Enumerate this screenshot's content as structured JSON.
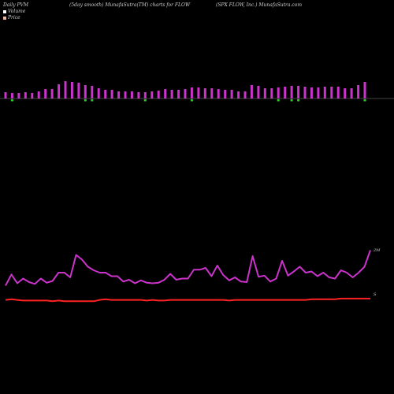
{
  "header": {
    "left": "Daily PVM",
    "middle": "(5day smooth) MunafaSutra(TM) charts for FLOW",
    "right": "(SPX FLOW, Inc.) MunafaSutra.com"
  },
  "legend": [
    {
      "label": "Volume",
      "color": "#ffffff"
    },
    {
      "label": "Price",
      "color": "#f2b6a0"
    }
  ],
  "colors": {
    "volume_up": "#cc33cc",
    "volume_down": "#33cc33",
    "pvm_line": "#cc33cc",
    "price_line": "#ff2222",
    "baseline": "#8a8a8a"
  },
  "chart_data": [
    {
      "type": "bar",
      "series": [
        {
          "name": "Volume",
          "values": [
            8,
            7,
            7,
            8,
            7,
            9,
            12,
            12,
            18,
            22,
            21,
            20,
            17,
            16,
            13,
            11,
            11,
            9,
            9,
            9,
            8,
            8,
            9,
            10,
            12,
            11,
            11,
            12,
            14,
            14,
            13,
            13,
            12,
            11,
            11,
            9,
            9,
            17,
            16,
            13,
            13,
            14,
            15,
            16,
            16,
            15,
            14,
            14,
            15,
            15,
            15,
            13,
            13,
            17,
            21
          ],
          "direction": [
            "u",
            "d",
            "u",
            "u",
            "u",
            "u",
            "u",
            "u",
            "u",
            "u",
            "u",
            "u",
            "d",
            "d",
            "u",
            "u",
            "u",
            "u",
            "u",
            "u",
            "u",
            "d",
            "u",
            "u",
            "u",
            "u",
            "u",
            "u",
            "d",
            "u",
            "u",
            "u",
            "u",
            "u",
            "u",
            "u",
            "u",
            "u",
            "u",
            "u",
            "u",
            "d",
            "u",
            "d",
            "d",
            "u",
            "u",
            "u",
            "u",
            "u",
            "u",
            "u",
            "u",
            "u",
            "d"
          ]
        }
      ]
    },
    {
      "type": "line",
      "series": [
        {
          "name": "",
          "values": [
            18,
            37,
            22,
            30,
            24,
            21,
            30,
            23,
            26,
            40,
            40,
            32,
            70,
            62,
            50,
            44,
            40,
            40,
            34,
            34,
            25,
            28,
            22,
            27,
            23,
            22,
            23,
            28,
            38,
            28,
            30,
            30,
            45,
            45,
            48,
            34,
            52,
            36,
            27,
            32,
            25,
            24,
            68,
            33,
            35,
            25,
            30,
            60,
            35,
            42,
            50,
            40,
            42,
            34,
            40,
            32,
            30,
            44,
            40,
            32,
            40,
            50,
            78
          ]
        },
        {
          "name": "",
          "values": [
            4,
            5,
            4,
            3,
            3,
            3,
            3,
            3,
            2,
            3,
            2,
            2,
            2,
            2,
            2,
            2,
            4,
            5,
            4,
            4,
            4,
            4,
            4,
            4,
            3,
            4,
            3,
            3,
            4,
            4,
            4,
            4,
            4,
            4,
            4,
            4,
            4,
            4,
            3,
            4,
            4,
            4,
            4,
            4,
            4,
            4,
            4,
            4,
            4,
            4,
            4,
            4,
            5,
            5,
            5,
            5,
            5,
            6,
            6,
            6,
            6,
            6,
            6
          ]
        }
      ],
      "annotations": [
        "2M",
        "S"
      ]
    }
  ]
}
